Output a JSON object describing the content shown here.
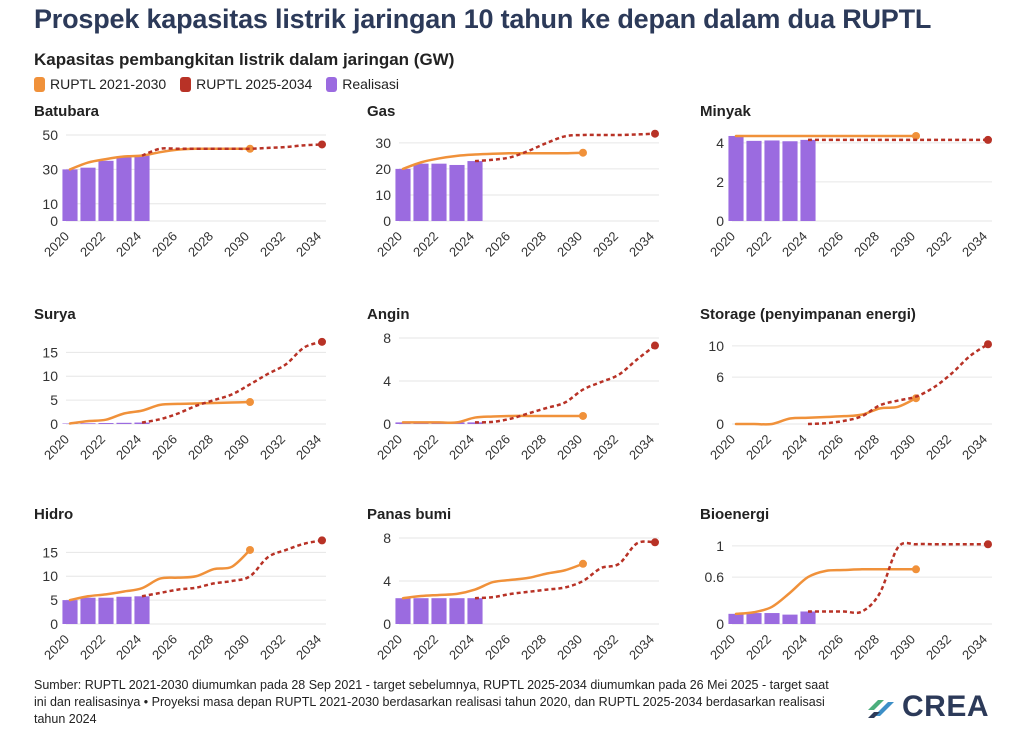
{
  "title": "Prospek kapasitas listrik jaringan 10 tahun ke depan dalam dua RUPTL",
  "subtitle": "Kapasitas pembangkitan listrik dalam jaringan (GW)",
  "legend": [
    {
      "label": "RUPTL 2021-2030",
      "color": "#f0913a"
    },
    {
      "label": "RUPTL 2025-2034",
      "color": "#b83226"
    },
    {
      "label": "Realisasi",
      "color": "#9b6be0"
    }
  ],
  "colors": {
    "ruptl2021": "#f0913a",
    "ruptl2025": "#b83226",
    "realisasi": "#9b6be0"
  },
  "footer": "Sumber: RUPTL 2021-2030 diumumkan pada 28 Sep 2021 - target sebelumnya, RUPTL 2025-2034 diumumkan pada 26 Mei 2025 - target saat ini dan realisasinya • Proyeksi masa depan RUPTL 2021-2030 berdasarkan realisasi tahun 2020, dan RUPTL 2025-2034 berdasarkan realisasi tahun 2024",
  "logo_text": "CREA",
  "chart_data": [
    {
      "type": "bar+line",
      "title": "Batubara",
      "xlim": [
        2020,
        2034
      ],
      "ylim": [
        0,
        50
      ],
      "yticks": [
        0,
        10,
        30,
        50
      ],
      "xticks": [
        2020,
        2022,
        2024,
        2026,
        2028,
        2030,
        2032,
        2034
      ],
      "series": [
        {
          "name": "Realisasi",
          "type": "bar",
          "x": [
            2020,
            2021,
            2022,
            2023,
            2024
          ],
          "values": [
            30,
            31,
            35,
            37,
            38
          ]
        },
        {
          "name": "RUPTL 2021-2030",
          "type": "line",
          "x": [
            2020,
            2021,
            2022,
            2023,
            2024,
            2025,
            2026,
            2027,
            2028,
            2029,
            2030
          ],
          "values": [
            30,
            34,
            36,
            37.5,
            38,
            40,
            41.5,
            42,
            42,
            42,
            42
          ]
        },
        {
          "name": "RUPTL 2025-2034",
          "type": "line",
          "x": [
            2024,
            2025,
            2026,
            2027,
            2028,
            2029,
            2030,
            2031,
            2032,
            2033,
            2034
          ],
          "values": [
            38,
            42,
            42,
            42,
            42,
            42,
            42,
            42.5,
            43,
            44,
            44.5
          ]
        }
      ]
    },
    {
      "type": "bar+line",
      "title": "Gas",
      "xlim": [
        2020,
        2034
      ],
      "ylim": [
        0,
        33
      ],
      "yticks": [
        0,
        10,
        20,
        30
      ],
      "xticks": [
        2020,
        2022,
        2024,
        2026,
        2028,
        2030,
        2032,
        2034
      ],
      "series": [
        {
          "name": "Realisasi",
          "type": "bar",
          "x": [
            2020,
            2021,
            2022,
            2023,
            2024
          ],
          "values": [
            20,
            22,
            22,
            21.5,
            23
          ]
        },
        {
          "name": "RUPTL 2021-2030",
          "type": "line",
          "x": [
            2020,
            2021,
            2022,
            2023,
            2024,
            2025,
            2026,
            2027,
            2028,
            2029,
            2030
          ],
          "values": [
            20,
            22.5,
            24,
            25,
            25.5,
            25.8,
            26,
            26,
            26,
            26,
            26.2
          ]
        },
        {
          "name": "RUPTL 2025-2034",
          "type": "line",
          "x": [
            2024,
            2025,
            2026,
            2027,
            2028,
            2029,
            2030,
            2031,
            2032,
            2033,
            2034
          ],
          "values": [
            23,
            23.5,
            24.5,
            27,
            30,
            32.5,
            33,
            33,
            33,
            33.2,
            33.5
          ]
        }
      ]
    },
    {
      "type": "bar+line",
      "title": "Minyak",
      "xlim": [
        2020,
        2034
      ],
      "ylim": [
        0,
        4.4
      ],
      "yticks": [
        0,
        2,
        4
      ],
      "xticks": [
        2020,
        2022,
        2024,
        2026,
        2028,
        2030,
        2032,
        2034
      ],
      "series": [
        {
          "name": "Realisasi",
          "type": "bar",
          "x": [
            2020,
            2021,
            2022,
            2023,
            2024
          ],
          "values": [
            4.35,
            4.1,
            4.12,
            4.08,
            4.15
          ]
        },
        {
          "name": "RUPTL 2021-2030",
          "type": "line",
          "x": [
            2020,
            2030
          ],
          "values": [
            4.35,
            4.35
          ]
        },
        {
          "name": "RUPTL 2025-2034",
          "type": "line",
          "x": [
            2024,
            2034
          ],
          "values": [
            4.15,
            4.15
          ]
        }
      ]
    },
    {
      "type": "bar+line",
      "title": "Surya",
      "xlim": [
        2020,
        2034
      ],
      "ylim": [
        0,
        18
      ],
      "yticks": [
        0,
        5,
        10,
        15
      ],
      "xticks": [
        2020,
        2022,
        2024,
        2026,
        2028,
        2030,
        2032,
        2034
      ],
      "series": [
        {
          "name": "Realisasi",
          "type": "bar",
          "x": [
            2020,
            2021,
            2022,
            2023,
            2024
          ],
          "values": [
            0.1,
            0.15,
            0.2,
            0.25,
            0.3
          ]
        },
        {
          "name": "RUPTL 2021-2030",
          "type": "line",
          "x": [
            2020,
            2021,
            2022,
            2023,
            2024,
            2025,
            2026,
            2027,
            2028,
            2029,
            2030
          ],
          "values": [
            0.1,
            0.6,
            0.9,
            2.2,
            2.8,
            4.0,
            4.2,
            4.3,
            4.4,
            4.5,
            4.6
          ]
        },
        {
          "name": "RUPTL 2025-2034",
          "type": "line",
          "x": [
            2024,
            2025,
            2026,
            2027,
            2028,
            2029,
            2030,
            2031,
            2032,
            2033,
            2034
          ],
          "values": [
            0.3,
            1.0,
            2.2,
            3.8,
            5.0,
            6.2,
            8.3,
            10.5,
            12.5,
            16.0,
            17.2
          ]
        }
      ]
    },
    {
      "type": "bar+line",
      "title": "Angin",
      "xlim": [
        2020,
        2034
      ],
      "ylim": [
        0,
        8
      ],
      "yticks": [
        0,
        4,
        8
      ],
      "xticks": [
        2020,
        2022,
        2024,
        2026,
        2028,
        2030,
        2032,
        2034
      ],
      "series": [
        {
          "name": "Realisasi",
          "type": "bar",
          "x": [
            2020,
            2021,
            2022,
            2023,
            2024
          ],
          "values": [
            0.15,
            0.15,
            0.15,
            0.15,
            0.15
          ]
        },
        {
          "name": "RUPTL 2021-2030",
          "type": "line",
          "x": [
            2020,
            2021,
            2022,
            2023,
            2024,
            2025,
            2026,
            2027,
            2028,
            2029,
            2030
          ],
          "values": [
            0.15,
            0.15,
            0.15,
            0.15,
            0.6,
            0.7,
            0.75,
            0.75,
            0.75,
            0.75,
            0.75
          ]
        },
        {
          "name": "RUPTL 2025-2034",
          "type": "line",
          "x": [
            2024,
            2025,
            2026,
            2027,
            2028,
            2029,
            2030,
            2031,
            2032,
            2033,
            2034
          ],
          "values": [
            0.15,
            0.2,
            0.5,
            1.0,
            1.5,
            2.0,
            3.2,
            3.9,
            4.6,
            6.0,
            7.3
          ]
        }
      ]
    },
    {
      "type": "bar+line",
      "title": "Storage (penyimpanan energi)",
      "xlim": [
        2020,
        2034
      ],
      "ylim": [
        0,
        11
      ],
      "yticks": [
        0,
        6,
        10
      ],
      "xticks": [
        2020,
        2022,
        2024,
        2026,
        2028,
        2030,
        2032,
        2034
      ],
      "series": [
        {
          "name": "RUPTL 2021-2030",
          "type": "line",
          "x": [
            2020,
            2021,
            2022,
            2023,
            2024,
            2025,
            2026,
            2027,
            2028,
            2029,
            2030
          ],
          "values": [
            0,
            0,
            0,
            0.7,
            0.8,
            0.9,
            1.0,
            1.2,
            2.0,
            2.2,
            3.3
          ]
        },
        {
          "name": "RUPTL 2025-2034",
          "type": "line",
          "x": [
            2024,
            2025,
            2026,
            2027,
            2028,
            2029,
            2030,
            2031,
            2032,
            2033,
            2034
          ],
          "values": [
            0,
            0.1,
            0.4,
            1.0,
            2.4,
            3.0,
            3.5,
            4.7,
            6.5,
            8.7,
            10.2
          ]
        }
      ]
    },
    {
      "type": "bar+line",
      "title": "Hidro",
      "xlim": [
        2020,
        2034
      ],
      "ylim": [
        0,
        18
      ],
      "yticks": [
        0,
        5,
        10,
        15
      ],
      "xticks": [
        2020,
        2022,
        2024,
        2026,
        2028,
        2030,
        2032,
        2034
      ],
      "series": [
        {
          "name": "Realisasi",
          "type": "bar",
          "x": [
            2020,
            2021,
            2022,
            2023,
            2024
          ],
          "values": [
            5.0,
            5.5,
            5.5,
            5.7,
            5.8
          ]
        },
        {
          "name": "RUPTL 2021-2030",
          "type": "line",
          "x": [
            2020,
            2021,
            2022,
            2023,
            2024,
            2025,
            2026,
            2027,
            2028,
            2029,
            2030
          ],
          "values": [
            5.0,
            5.8,
            6.2,
            6.8,
            7.5,
            9.5,
            9.7,
            10.0,
            11.5,
            12.0,
            15.5
          ]
        },
        {
          "name": "RUPTL 2025-2034",
          "type": "line",
          "x": [
            2024,
            2025,
            2026,
            2027,
            2028,
            2029,
            2030,
            2031,
            2032,
            2033,
            2034
          ],
          "values": [
            5.8,
            6.5,
            7.2,
            7.6,
            8.5,
            9.0,
            10.0,
            14.0,
            15.5,
            16.8,
            17.5
          ]
        }
      ]
    },
    {
      "type": "bar+line",
      "title": "Panas bumi",
      "xlim": [
        2020,
        2034
      ],
      "ylim": [
        0,
        8
      ],
      "yticks": [
        0,
        4,
        8
      ],
      "xticks": [
        2020,
        2022,
        2024,
        2026,
        2028,
        2030,
        2032,
        2034
      ],
      "series": [
        {
          "name": "Realisasi",
          "type": "bar",
          "x": [
            2020,
            2021,
            2022,
            2023,
            2024
          ],
          "values": [
            2.4,
            2.4,
            2.4,
            2.4,
            2.4
          ]
        },
        {
          "name": "RUPTL 2021-2030",
          "type": "line",
          "x": [
            2020,
            2021,
            2022,
            2023,
            2024,
            2025,
            2026,
            2027,
            2028,
            2029,
            2030
          ],
          "values": [
            2.4,
            2.6,
            2.7,
            2.8,
            3.2,
            3.9,
            4.1,
            4.3,
            4.7,
            5.0,
            5.6
          ]
        },
        {
          "name": "RUPTL 2025-2034",
          "type": "line",
          "x": [
            2024,
            2025,
            2026,
            2027,
            2028,
            2029,
            2030,
            2031,
            2032,
            2033,
            2034
          ],
          "values": [
            2.4,
            2.5,
            2.8,
            3.0,
            3.2,
            3.4,
            4.0,
            5.2,
            5.6,
            7.5,
            7.6
          ]
        }
      ]
    },
    {
      "type": "bar+line",
      "title": "Bioenergi",
      "xlim": [
        2020,
        2034
      ],
      "ylim": [
        0,
        1.1
      ],
      "yticks": [
        0,
        0.6,
        1
      ],
      "xticks": [
        2020,
        2022,
        2024,
        2026,
        2028,
        2030,
        2032,
        2034
      ],
      "series": [
        {
          "name": "Realisasi",
          "type": "bar",
          "x": [
            2020,
            2021,
            2022,
            2023,
            2024
          ],
          "values": [
            0.13,
            0.14,
            0.14,
            0.12,
            0.16
          ]
        },
        {
          "name": "RUPTL 2021-2030",
          "type": "line",
          "x": [
            2020,
            2021,
            2022,
            2023,
            2024,
            2025,
            2026,
            2027,
            2028,
            2029,
            2030
          ],
          "values": [
            0.13,
            0.15,
            0.22,
            0.4,
            0.6,
            0.68,
            0.69,
            0.7,
            0.7,
            0.7,
            0.7
          ]
        },
        {
          "name": "RUPTL 2025-2034",
          "type": "line",
          "x": [
            2024,
            2025,
            2026,
            2027,
            2028,
            2029,
            2030,
            2031,
            2032,
            2033,
            2034
          ],
          "values": [
            0.16,
            0.16,
            0.16,
            0.16,
            0.4,
            0.98,
            1.02,
            1.02,
            1.02,
            1.02,
            1.02
          ]
        }
      ]
    }
  ]
}
